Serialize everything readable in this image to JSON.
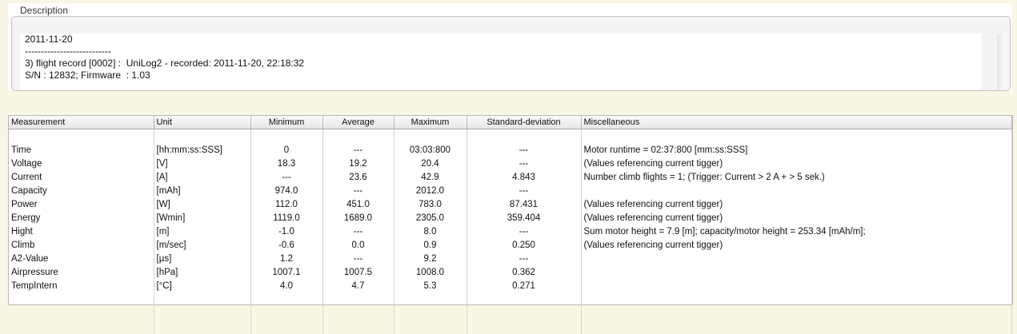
{
  "description": {
    "title": "Description",
    "lines": [
      "2011-11-20",
      "---------------------------",
      "3) flight record [0002] :  UniLog2 - recorded: 2011-11-20, 22:18:32",
      "S/N : 12832; Firmware  : 1.03"
    ]
  },
  "table": {
    "headers": [
      "Measurement",
      "Unit",
      "Minimum",
      "Average",
      "Maximum",
      "Standard-deviation",
      "Miscellaneous"
    ],
    "rows": [
      [
        "",
        "",
        "",
        "",
        "",
        "",
        ""
      ],
      [
        "Time",
        "[hh:mm:ss:SSS]",
        "0",
        "---",
        "03:03:800",
        "---",
        "Motor runtime = 02:37:800 [mm:ss:SSS]"
      ],
      [
        "Voltage",
        "[V]",
        "18.3",
        "19.2",
        "20.4",
        "---",
        "(Values referencing current tigger)"
      ],
      [
        "Current",
        "[A]",
        "---",
        "23.6",
        "42.9",
        "4.843",
        "Number climb flights = 1; (Trigger: Current > 2 A + > 5 sek.)"
      ],
      [
        "Capacity",
        "[mAh]",
        "974.0",
        "---",
        "2012.0",
        "---",
        ""
      ],
      [
        "Power",
        "[W]",
        "112.0",
        "451.0",
        "783.0",
        "87.431",
        "(Values referencing current tigger)"
      ],
      [
        "Energy",
        "[Wmin]",
        "1119.0",
        "1689.0",
        "2305.0",
        "359.404",
        "(Values referencing current tigger)"
      ],
      [
        "Hight",
        "[m]",
        "-1.0",
        "---",
        "8.0",
        "---",
        "Sum motor height = 7.9 [m]; capacity/motor height = 253.34 [mAh/m];"
      ],
      [
        "Climb",
        "[m/sec]",
        "-0.6",
        "0.0",
        "0.9",
        "0.250",
        "(Values referencing current tigger)"
      ],
      [
        "A2-Value",
        "[µs]",
        "1.2",
        "---",
        "9.2",
        "---",
        ""
      ],
      [
        "Airpressure",
        "[hPa]",
        "1007.1",
        "1007.5",
        "1008.0",
        "0.362",
        ""
      ],
      [
        "TempIntern",
        "[°C]",
        "4.0",
        "4.7",
        "5.3",
        "0.271",
        ""
      ]
    ]
  }
}
